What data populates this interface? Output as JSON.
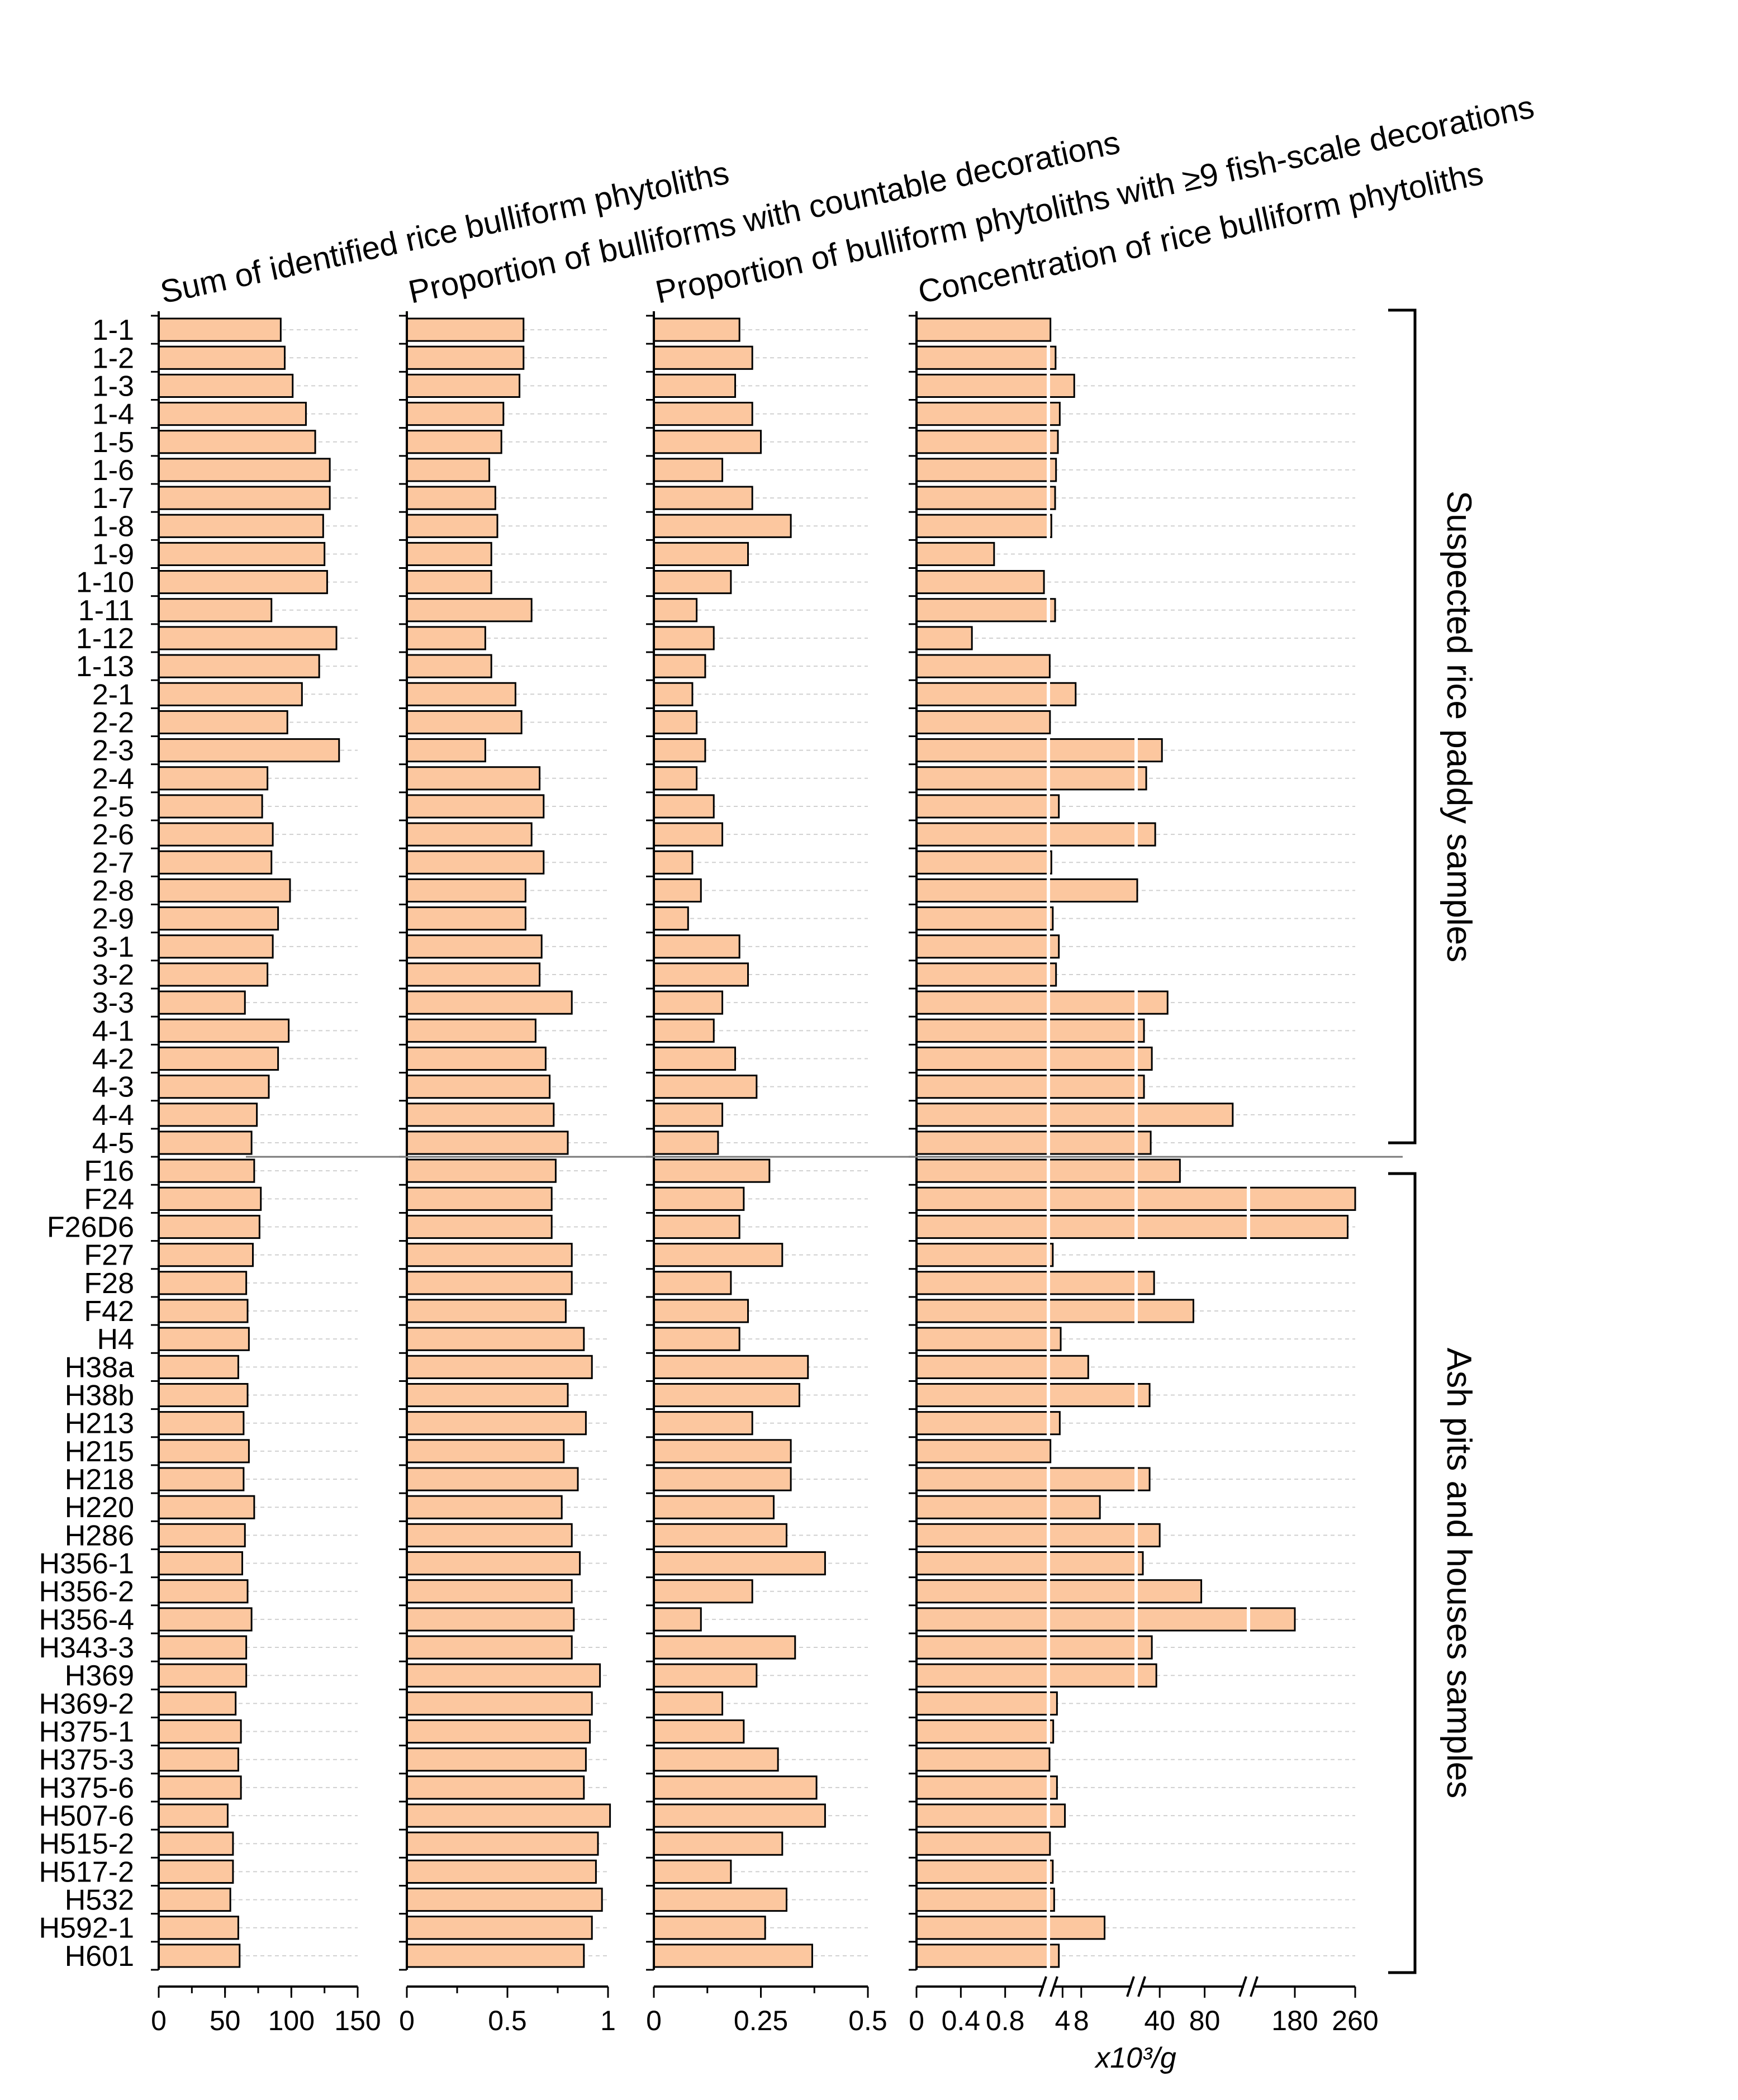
{
  "chart_data": {
    "type": "bar",
    "orientation": "horizontal",
    "bar_color": "#fcc79f",
    "bar_edge_color": "#000000",
    "grid_color": "#d0d0d0",
    "categories": [
      "1-1",
      "1-2",
      "1-3",
      "1-4",
      "1-5",
      "1-6",
      "1-7",
      "1-8",
      "1-9",
      "1-10",
      "1-11",
      "1-12",
      "1-13",
      "2-1",
      "2-2",
      "2-3",
      "2-4",
      "2-5",
      "2-6",
      "2-7",
      "2-8",
      "2-9",
      "3-1",
      "3-2",
      "3-3",
      "4-1",
      "4-2",
      "4-3",
      "4-4",
      "4-5",
      "F16",
      "F24",
      "F26D6",
      "F27",
      "F28",
      "F42",
      "H4",
      "H38a",
      "H38b",
      "H213",
      "H215",
      "H218",
      "H220",
      "H286",
      "H356-1",
      "H356-2",
      "H356-4",
      "H343-3",
      "H369",
      "H369-2",
      "H375-1",
      "H375-3",
      "H375-6",
      "H507-6",
      "H515-2",
      "H517-2",
      "H532",
      "H592-1",
      "H601"
    ],
    "groups": [
      {
        "label": "Suspected rice paddy samples",
        "from": "1-1",
        "to": "4-5"
      },
      {
        "label": "Ash pits and houses samples",
        "from": "F16",
        "to": "H601"
      }
    ],
    "panels": [
      {
        "title": "Sum of identified rice bulliform phytoliths",
        "xlim": [
          0,
          150
        ],
        "ticks": [
          0,
          50,
          100,
          150
        ],
        "tick_labels": [
          "0",
          "50",
          "100",
          "150"
        ],
        "values": [
          92,
          95,
          101,
          111,
          118,
          129,
          129,
          124,
          125,
          127,
          85,
          134,
          121,
          108,
          97,
          136,
          82,
          78,
          86,
          85,
          99,
          90,
          86,
          82,
          65,
          98,
          90,
          83,
          74,
          70,
          72,
          77,
          76,
          71,
          66,
          67,
          68,
          60,
          67,
          64,
          68,
          64,
          72,
          65,
          63,
          67,
          70,
          66,
          66,
          58,
          62,
          60,
          62,
          52,
          56,
          56,
          54,
          60,
          61
        ]
      },
      {
        "title": "Proportion of bulliforms with  countable decorations",
        "xlim": [
          0,
          1
        ],
        "ticks": [
          0,
          0.5,
          1
        ],
        "tick_labels": [
          "0",
          "0.5",
          "1"
        ],
        "values": [
          0.58,
          0.58,
          0.56,
          0.48,
          0.47,
          0.41,
          0.44,
          0.45,
          0.42,
          0.42,
          0.62,
          0.39,
          0.42,
          0.54,
          0.57,
          0.39,
          0.66,
          0.68,
          0.62,
          0.68,
          0.59,
          0.59,
          0.67,
          0.66,
          0.82,
          0.64,
          0.69,
          0.71,
          0.73,
          0.8,
          0.74,
          0.72,
          0.72,
          0.82,
          0.82,
          0.79,
          0.88,
          0.92,
          0.8,
          0.89,
          0.78,
          0.85,
          0.77,
          0.82,
          0.86,
          0.82,
          0.83,
          0.82,
          0.96,
          0.92,
          0.91,
          0.89,
          0.88,
          1.01,
          0.95,
          0.94,
          0.97,
          0.92,
          0.88
        ]
      },
      {
        "title": "Proportion of bulliform phytoliths with ≥9 fish-scale decorations",
        "xlim": [
          0,
          0.5
        ],
        "ticks": [
          0,
          0.25,
          0.5
        ],
        "tick_labels": [
          "0",
          "0.25",
          "0.5"
        ],
        "values": [
          0.2,
          0.23,
          0.19,
          0.23,
          0.25,
          0.16,
          0.23,
          0.32,
          0.22,
          0.18,
          0.1,
          0.14,
          0.12,
          0.09,
          0.1,
          0.12,
          0.1,
          0.14,
          0.16,
          0.09,
          0.11,
          0.08,
          0.2,
          0.22,
          0.16,
          0.14,
          0.19,
          0.24,
          0.16,
          0.15,
          0.27,
          0.21,
          0.2,
          0.3,
          0.18,
          0.22,
          0.2,
          0.36,
          0.34,
          0.23,
          0.32,
          0.32,
          0.28,
          0.31,
          0.4,
          0.23,
          0.11,
          0.33,
          0.24,
          0.16,
          0.21,
          0.29,
          0.38,
          0.4,
          0.3,
          0.18,
          0.31,
          0.26,
          0.37
        ]
      },
      {
        "title": "Concentration of rice bulliform phytoliths",
        "xlabel": "x10³/g",
        "scale": "broken",
        "segments": [
          [
            0,
            1.2
          ],
          [
            1.2,
            20
          ],
          [
            20,
            120
          ],
          [
            120,
            260
          ]
        ],
        "ticks": [
          0,
          0.4,
          0.8,
          4,
          8,
          40,
          80,
          180,
          260
        ],
        "tick_labels": [
          "0",
          "0.4",
          "0.8",
          "4",
          "8",
          "40",
          "80",
          "180",
          "260"
        ],
        "values": [
          1.4,
          2.5,
          6.5,
          3.4,
          3.0,
          2.6,
          2.4,
          1.6,
          0.7,
          1.15,
          2.4,
          0.5,
          1.25,
          6.8,
          1.3,
          42,
          28,
          3.2,
          36,
          1.6,
          20,
          1.9,
          3.2,
          2.6,
          47,
          26,
          33,
          26,
          105,
          32,
          58,
          260,
          250,
          1.9,
          35,
          70,
          3.6,
          9.5,
          31,
          3.4,
          1.4,
          31,
          12,
          40,
          25,
          77,
          180,
          33,
          37,
          2.8,
          2.0,
          1.2,
          2.8,
          4.5,
          1.3,
          1.9,
          2.2,
          13,
          3.2
        ]
      }
    ]
  }
}
